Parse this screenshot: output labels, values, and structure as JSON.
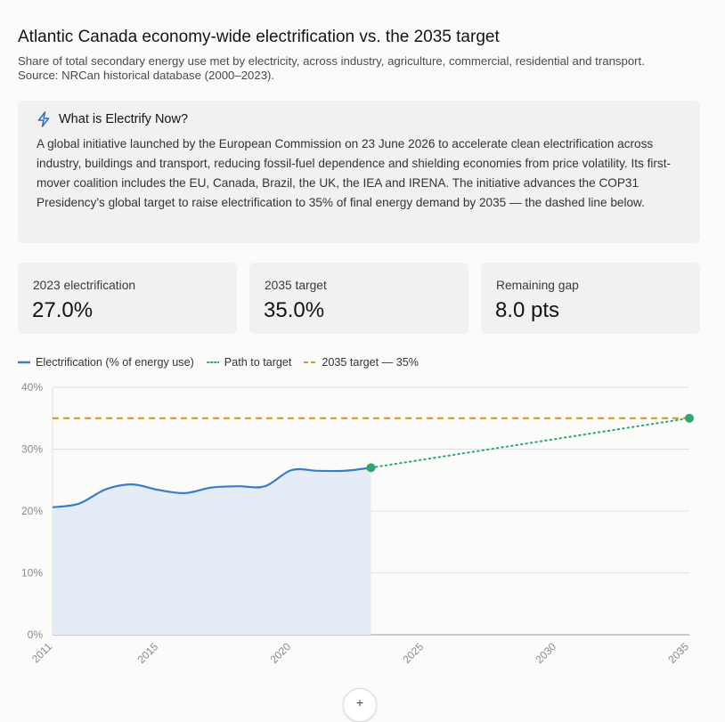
{
  "header": {
    "title": "Atlantic Canada economy-wide electrification vs. the 2035 target",
    "subtitle": "Share of total secondary energy use met by electricity, across industry, agriculture, commercial, residential and transport. Source: NRCan historical database (2000–2023)."
  },
  "info": {
    "icon": "lightning-icon",
    "title": "What is Electrify Now?",
    "body": "A global initiative launched by the European Commission on 23 June 2026 to accelerate clean electrification across industry, buildings and transport, reducing fossil-fuel dependence and shielding economies from price volatility. Its first-mover coalition includes the EU, Canada, Brazil, the UK, the IEA and IRENA. The initiative advances the COP31 Presidency’s global target to raise electrification to 35% of final energy demand by 2035 — the dashed line below."
  },
  "stats": [
    {
      "label": "2023 electrification",
      "value": "27.0%"
    },
    {
      "label": "2035 target",
      "value": "35.0%"
    },
    {
      "label": "Remaining gap",
      "value": "8.0 pts"
    }
  ],
  "colors": {
    "actual": "#3a7cc8",
    "actual_fill": "#e4ecf6",
    "path": "#2aa774",
    "target": "#d9960f",
    "grid": "#e0e0e0",
    "axis_text": "#8a8a8a"
  },
  "chart_data": {
    "type": "line",
    "legend": [
      {
        "label": "Electrification (% of energy use)",
        "style": "solid",
        "color": "#3a7cc8"
      },
      {
        "label": "Path to target",
        "style": "dotted",
        "color": "#2aa774"
      },
      {
        "label": "2035 target — 35%",
        "style": "dashed",
        "color": "#d9960f"
      }
    ],
    "series": [
      {
        "name": "Electrification (% of energy use)",
        "x": [
          2011,
          2012,
          2013,
          2014,
          2015,
          2016,
          2017,
          2018,
          2019,
          2020,
          2021,
          2022,
          2023
        ],
        "y": [
          20.6,
          21.2,
          23.5,
          24.3,
          23.4,
          22.9,
          23.8,
          24.0,
          24.0,
          26.6,
          26.5,
          26.5,
          27.0
        ]
      },
      {
        "name": "Path to target",
        "x": [
          2023,
          2035
        ],
        "y": [
          27.0,
          35.0
        ]
      }
    ],
    "target": {
      "name": "2035 target — 35%",
      "y": 35
    },
    "x_ticks": [
      "2011",
      "2015",
      "2020",
      "2025",
      "2030",
      "2035"
    ],
    "y_ticks": [
      "0%",
      "10%",
      "20%",
      "30%",
      "40%"
    ],
    "xlim": [
      2011,
      2035
    ],
    "ylim": [
      0,
      40
    ],
    "grid": true
  }
}
